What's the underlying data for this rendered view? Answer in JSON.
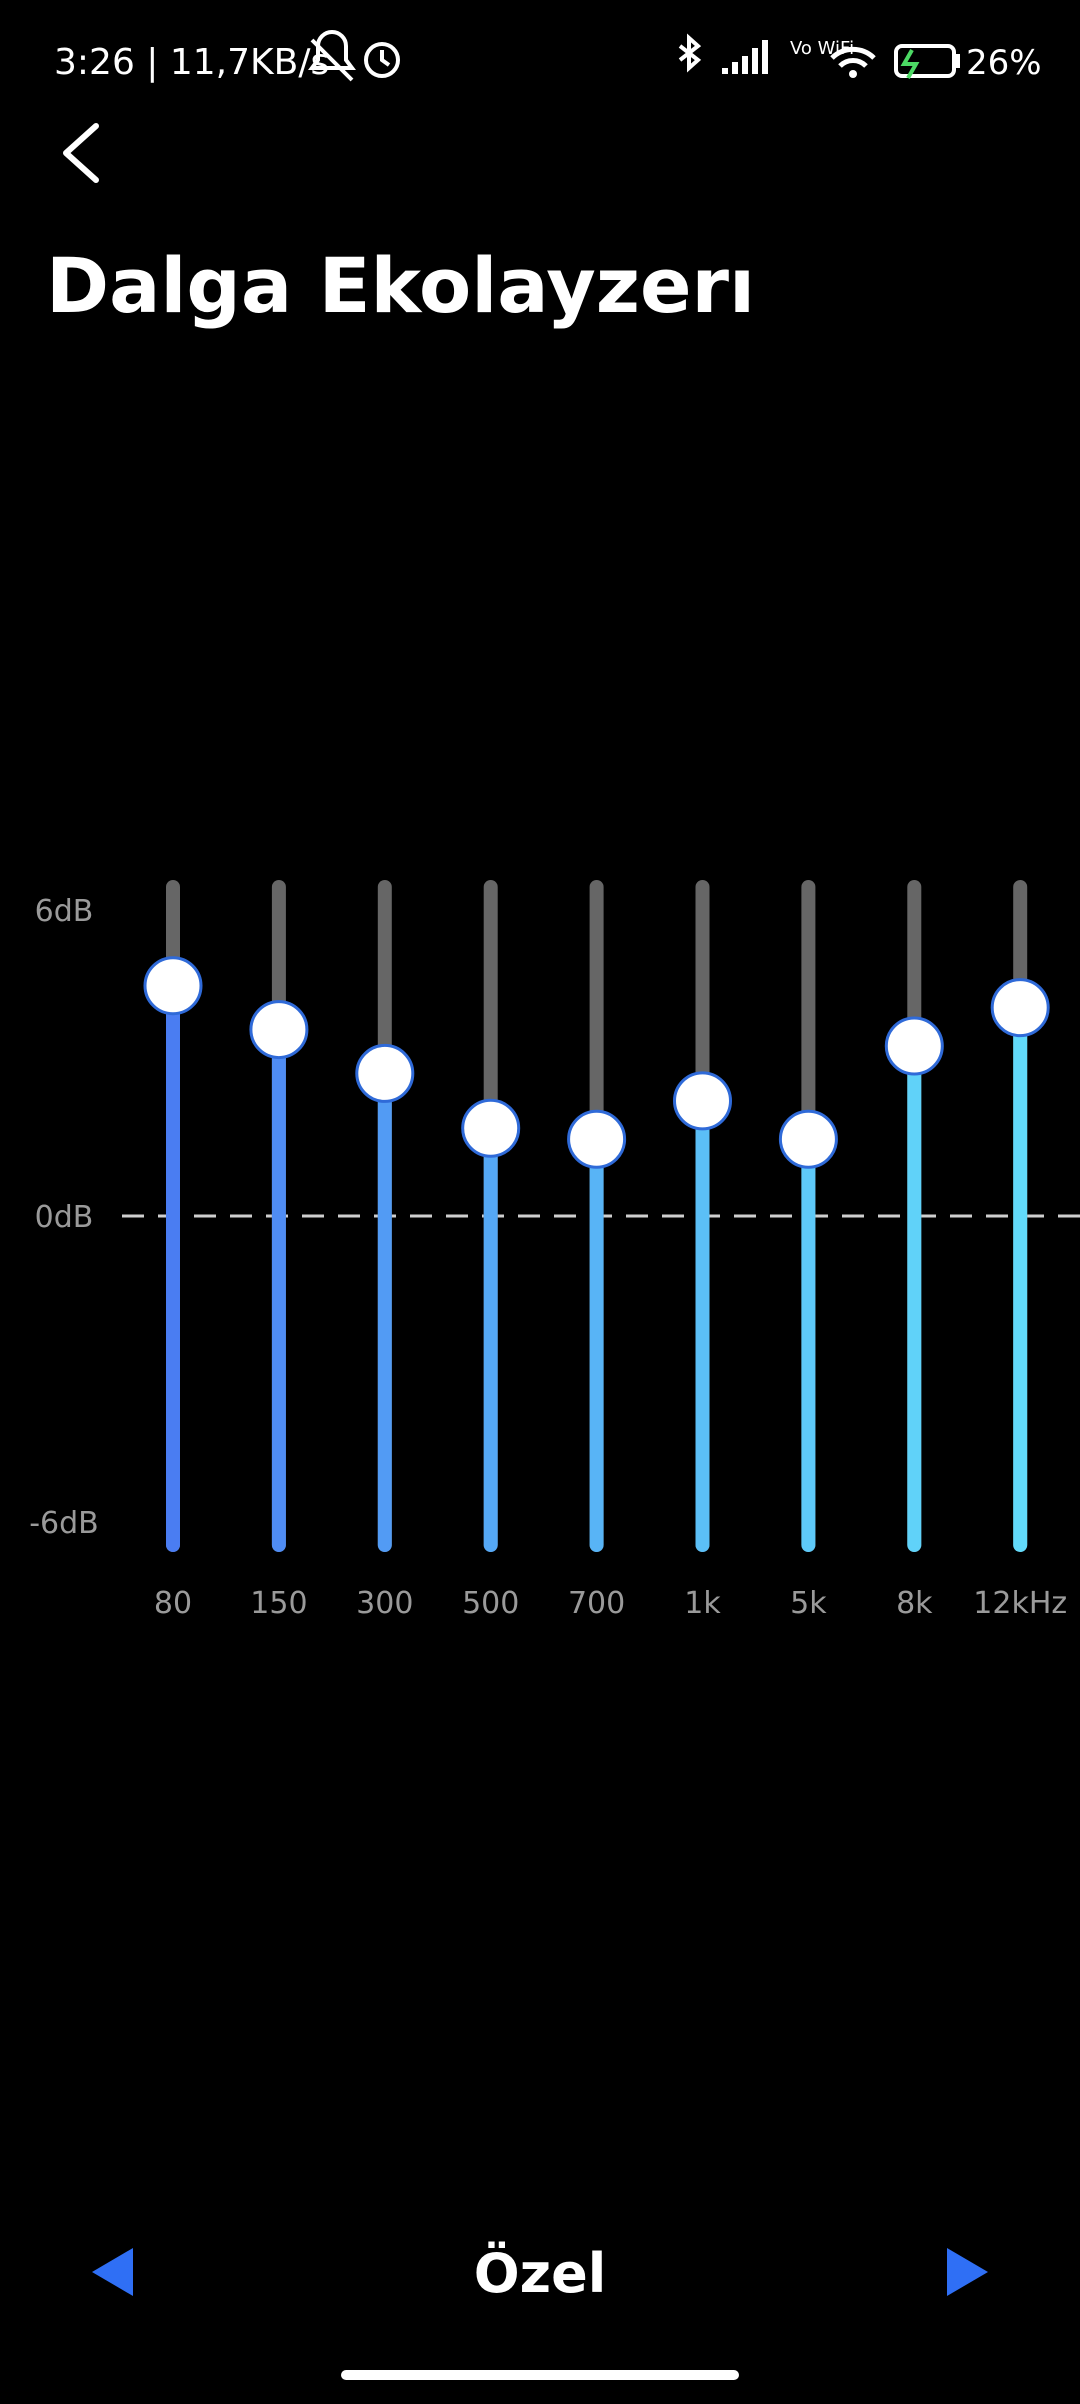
{
  "status_bar": {
    "left": "3:26 | 11,7KB/s",
    "vowifi": "Vo WiFi",
    "battery": "26%"
  },
  "header": {
    "title": "Dalga Ekolayzerı"
  },
  "equalizer": {
    "bands": [
      "80",
      "150",
      "300",
      "500",
      "700",
      "1k",
      "5k",
      "8k",
      "12kHz"
    ],
    "values": [
      4.2,
      3.4,
      2.6,
      1.6,
      1.4,
      2.1,
      1.4,
      3.1,
      3.8
    ],
    "ylim": [
      -6,
      6
    ],
    "yticks": [
      {
        "value": 6,
        "label": "6dB"
      },
      {
        "value": 0,
        "label": "0dB"
      },
      {
        "value": -6,
        "label": "-6dB"
      }
    ],
    "colors": [
      "#4a7df2",
      "#4f8cf3",
      "#529bf4",
      "#55a8f5",
      "#58b4f6",
      "#5bbff7",
      "#5ec9f8",
      "#60d2f9",
      "#62dafa"
    ]
  },
  "footer": {
    "preset": "Özel"
  }
}
